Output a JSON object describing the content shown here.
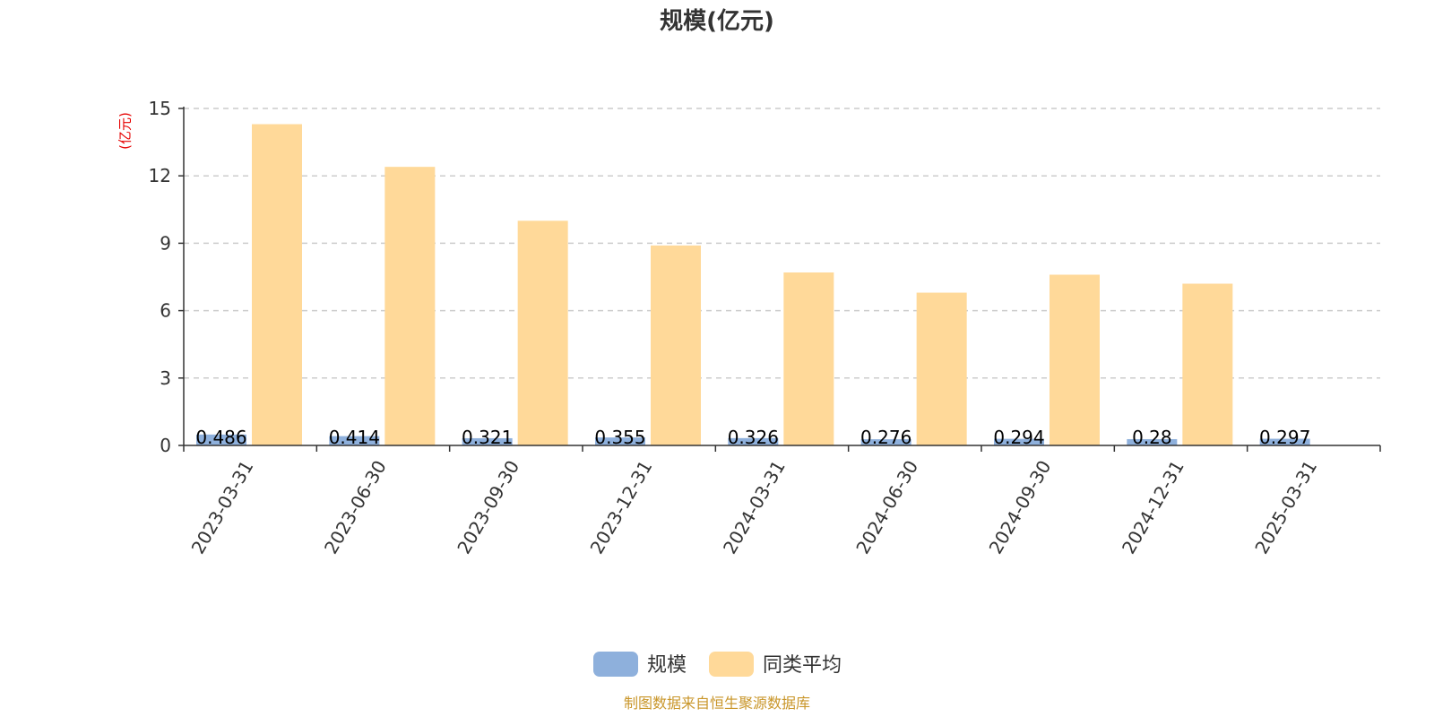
{
  "chart_data": {
    "type": "bar",
    "title": "规模(亿元)",
    "ylabel": "(亿元)",
    "xlabel": "",
    "ylim": [
      0,
      15
    ],
    "yticks": [
      0,
      3,
      6,
      9,
      12,
      15
    ],
    "grid": true,
    "legend_position": "bottom",
    "categories": [
      "2023-03-31",
      "2023-06-30",
      "2023-09-30",
      "2023-12-31",
      "2024-03-31",
      "2024-06-30",
      "2024-09-30",
      "2024-12-31",
      "2025-03-31"
    ],
    "series": [
      {
        "name": "规模",
        "color": "#8eb0dc",
        "values": [
          0.486,
          0.414,
          0.321,
          0.355,
          0.326,
          0.276,
          0.294,
          0.28,
          0.297
        ],
        "labels": [
          "0.486",
          "0.414",
          "0.321",
          "0.355",
          "0.326",
          "0.276",
          "0.294",
          "0.28",
          "0.297"
        ]
      },
      {
        "name": "同类平均",
        "color": "#ffd999",
        "values": [
          14.3,
          12.4,
          10.0,
          8.9,
          7.7,
          6.8,
          7.6,
          7.2,
          null
        ]
      }
    ],
    "source": "制图数据来自恒生聚源数据库"
  }
}
